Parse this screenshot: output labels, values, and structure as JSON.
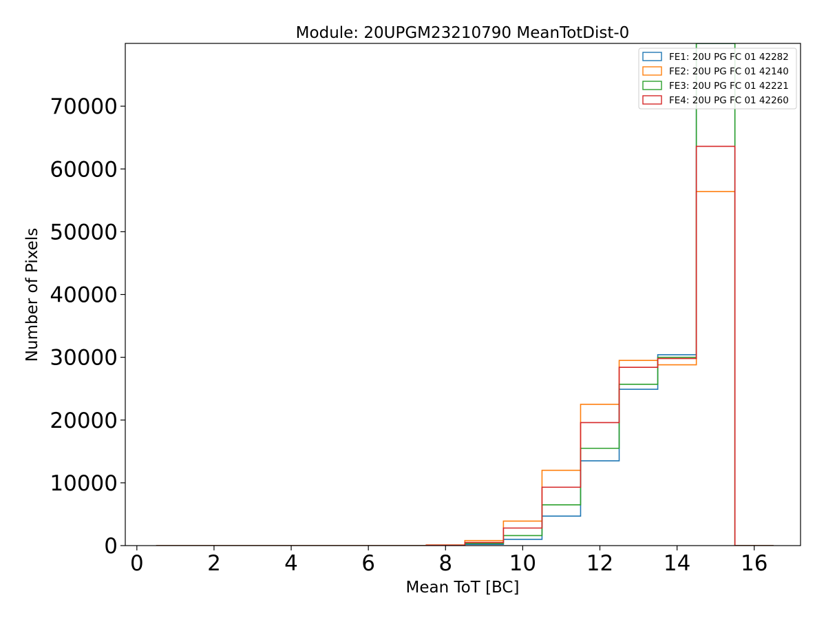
{
  "chart_data": {
    "type": "histogram-step",
    "title": "Module: 20UPGM23210790 MeanTotDist-0",
    "xlabel": "Mean ToT [BC]",
    "ylabel": "Number of Pixels",
    "xlim": [
      -0.3,
      17.2
    ],
    "ylim": [
      0,
      80000
    ],
    "xticks": [
      0,
      2,
      4,
      6,
      8,
      10,
      12,
      14,
      16
    ],
    "yticks": [
      0,
      10000,
      20000,
      30000,
      40000,
      50000,
      60000,
      70000
    ],
    "legend_position": "top-right",
    "bin_edges": [
      0.5,
      1.5,
      2.5,
      3.5,
      4.5,
      5.5,
      6.5,
      7.5,
      8.5,
      9.5,
      10.5,
      11.5,
      12.5,
      13.5,
      14.5,
      15.5,
      16.5
    ],
    "series": [
      {
        "name": "FE1: 20U PG FC 01 42282",
        "color": "#1f77b4",
        "values": [
          0,
          0,
          0,
          0,
          0,
          0,
          0,
          20,
          200,
          1000,
          4700,
          13500,
          24900,
          30400,
          80000,
          0
        ]
      },
      {
        "name": "FE2: 20U PG FC 01 42140",
        "color": "#ff7f0e",
        "values": [
          0,
          0,
          0,
          0,
          0,
          0,
          0,
          100,
          800,
          3900,
          12000,
          22500,
          29500,
          28800,
          56400,
          0
        ]
      },
      {
        "name": "FE3: 20U PG FC 01 42221",
        "color": "#2ca02c",
        "values": [
          0,
          0,
          0,
          0,
          0,
          0,
          0,
          30,
          350,
          1600,
          6500,
          15500,
          25700,
          30000,
          80000,
          0
        ]
      },
      {
        "name": "FE4: 20U PG FC 01 42260",
        "color": "#d62728",
        "values": [
          0,
          0,
          0,
          0,
          0,
          0,
          0,
          60,
          500,
          2800,
          9300,
          19600,
          28400,
          29800,
          63600,
          0
        ]
      }
    ]
  }
}
